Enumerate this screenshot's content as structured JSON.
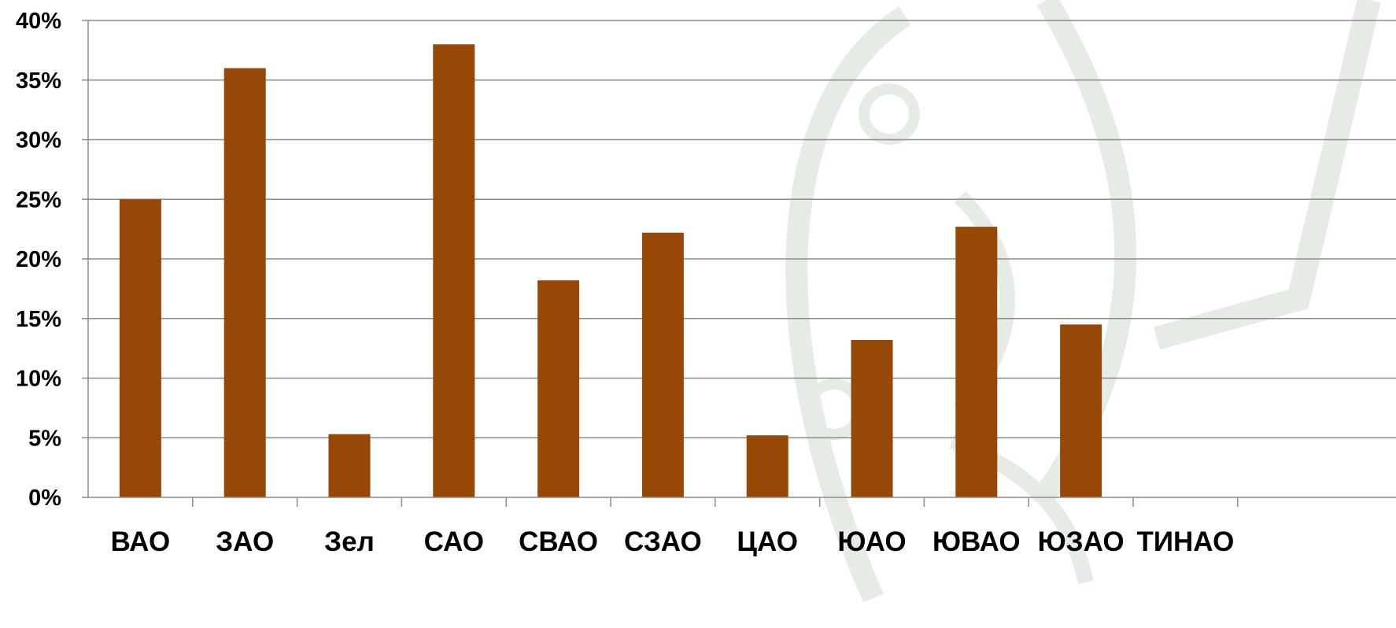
{
  "chart_data": {
    "type": "bar",
    "categories": [
      "ВАО",
      "ЗАО",
      "Зел",
      "САО",
      "СВАО",
      "СЗАО",
      "ЦАО",
      "ЮАО",
      "ЮВАО",
      "ЮЗАО",
      "ТИНАО"
    ],
    "values": [
      25,
      36,
      5.3,
      38,
      18.2,
      22.2,
      5.2,
      13.2,
      22.7,
      14.5,
      0
    ],
    "ylim": [
      0,
      40
    ],
    "yticks": [
      "0%",
      "5%",
      "10%",
      "15%",
      "20%",
      "25%",
      "30%",
      "35%",
      "40%"
    ],
    "grid": true,
    "bar_color": "#974706",
    "grid_color": "#8c8c8c",
    "title": "",
    "xlabel": "",
    "ylabel": ""
  },
  "background": {
    "watermark": "laurel-emblem-icon",
    "watermark_color": "#dfe6df"
  }
}
